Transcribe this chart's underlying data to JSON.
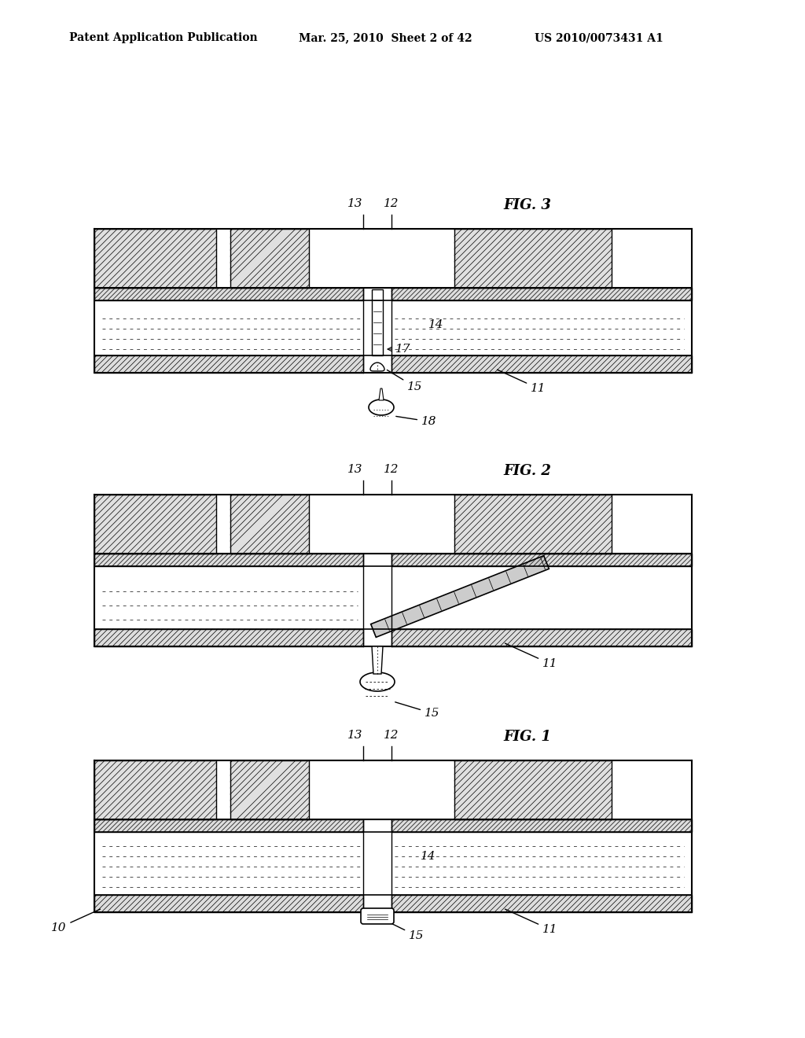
{
  "bg_color": "#ffffff",
  "line_color": "#000000",
  "hatch_color": "#000000",
  "header_text": "Patent Application Publication",
  "header_date": "Mar. 25, 2010  Sheet 2 of 42",
  "header_patent": "US 2010/0073431 A1",
  "fig1_label": "FIG. 1",
  "fig2_label": "FIG. 2",
  "fig3_label": "FIG. 3",
  "label_10": "10",
  "label_11": "11",
  "label_12": "12",
  "label_13": "13",
  "label_14": "14",
  "label_15": "15",
  "label_17": "17",
  "label_18": "18"
}
